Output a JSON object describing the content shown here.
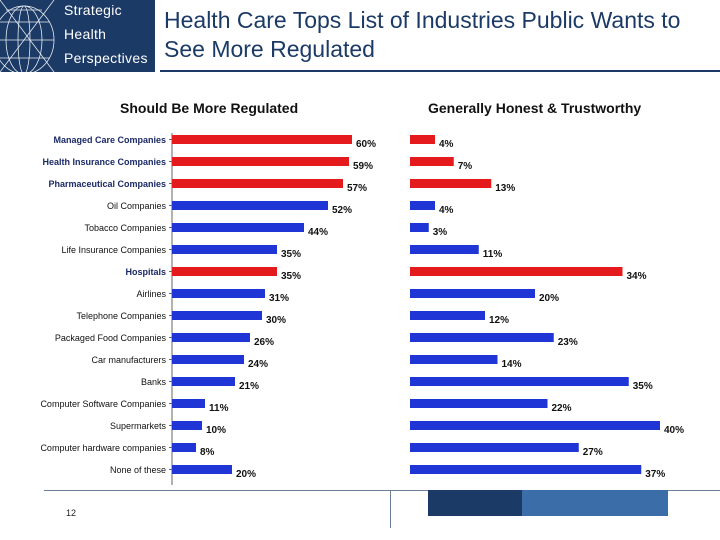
{
  "logo": {
    "lines": [
      "Strategic",
      "Health",
      "Perspectives"
    ]
  },
  "slide_title": "Health Care Tops List of Industries Public Wants to See More Regulated",
  "page_number": "12",
  "colors": {
    "highlight": "#e41a1c",
    "bar": "#1f35d6",
    "navy": "#1b3a66",
    "accent_blue": "#3b6ea8"
  },
  "chart_data": [
    {
      "type": "bar",
      "orientation": "horizontal",
      "title": "Should Be More Regulated",
      "categories": [
        "Managed Care Companies",
        "Health Insurance Companies",
        "Pharmaceutical Companies",
        "Oil Companies",
        "Tobacco Companies",
        "Life Insurance Companies",
        "Hospitals",
        "Airlines",
        "Telephone Companies",
        "Packaged Food Companies",
        "Car manufacturers",
        "Banks",
        "Computer Software Companies",
        "Supermarkets",
        "Computer hardware companies",
        "None of these"
      ],
      "values": [
        60,
        59,
        57,
        52,
        44,
        35,
        35,
        31,
        30,
        26,
        24,
        21,
        11,
        10,
        8,
        20
      ],
      "labels": [
        "60%",
        "59%",
        "57%",
        "52%",
        "44%",
        "35%",
        "35%",
        "31%",
        "30%",
        "26%",
        "24%",
        "21%",
        "11%",
        "10%",
        "8%",
        "20%"
      ],
      "highlighted": [
        0,
        1,
        2,
        6
      ],
      "xlim": [
        0,
        60
      ],
      "unit": "%"
    },
    {
      "type": "bar",
      "orientation": "horizontal",
      "title": "Generally Honest & Trustworthy",
      "categories": [
        "Managed Care Companies",
        "Health Insurance Companies",
        "Pharmaceutical Companies",
        "Oil Companies",
        "Tobacco Companies",
        "Life Insurance Companies",
        "Hospitals",
        "Airlines",
        "Telephone Companies",
        "Packaged Food Companies",
        "Car manufacturers",
        "Banks",
        "Computer Software Companies",
        "Supermarkets",
        "Computer hardware companies",
        "None of these"
      ],
      "values": [
        4,
        7,
        13,
        4,
        3,
        11,
        34,
        20,
        12,
        23,
        14,
        35,
        22,
        40,
        27,
        37
      ],
      "labels": [
        "4%",
        "7%",
        "13%",
        "4%",
        "3%",
        "11%",
        "34%",
        "20%",
        "12%",
        "23%",
        "14%",
        "35%",
        "22%",
        "40%",
        "27%",
        "37%"
      ],
      "highlighted": [
        0,
        1,
        2,
        6
      ],
      "xlim": [
        0,
        40
      ],
      "unit": "%"
    }
  ]
}
